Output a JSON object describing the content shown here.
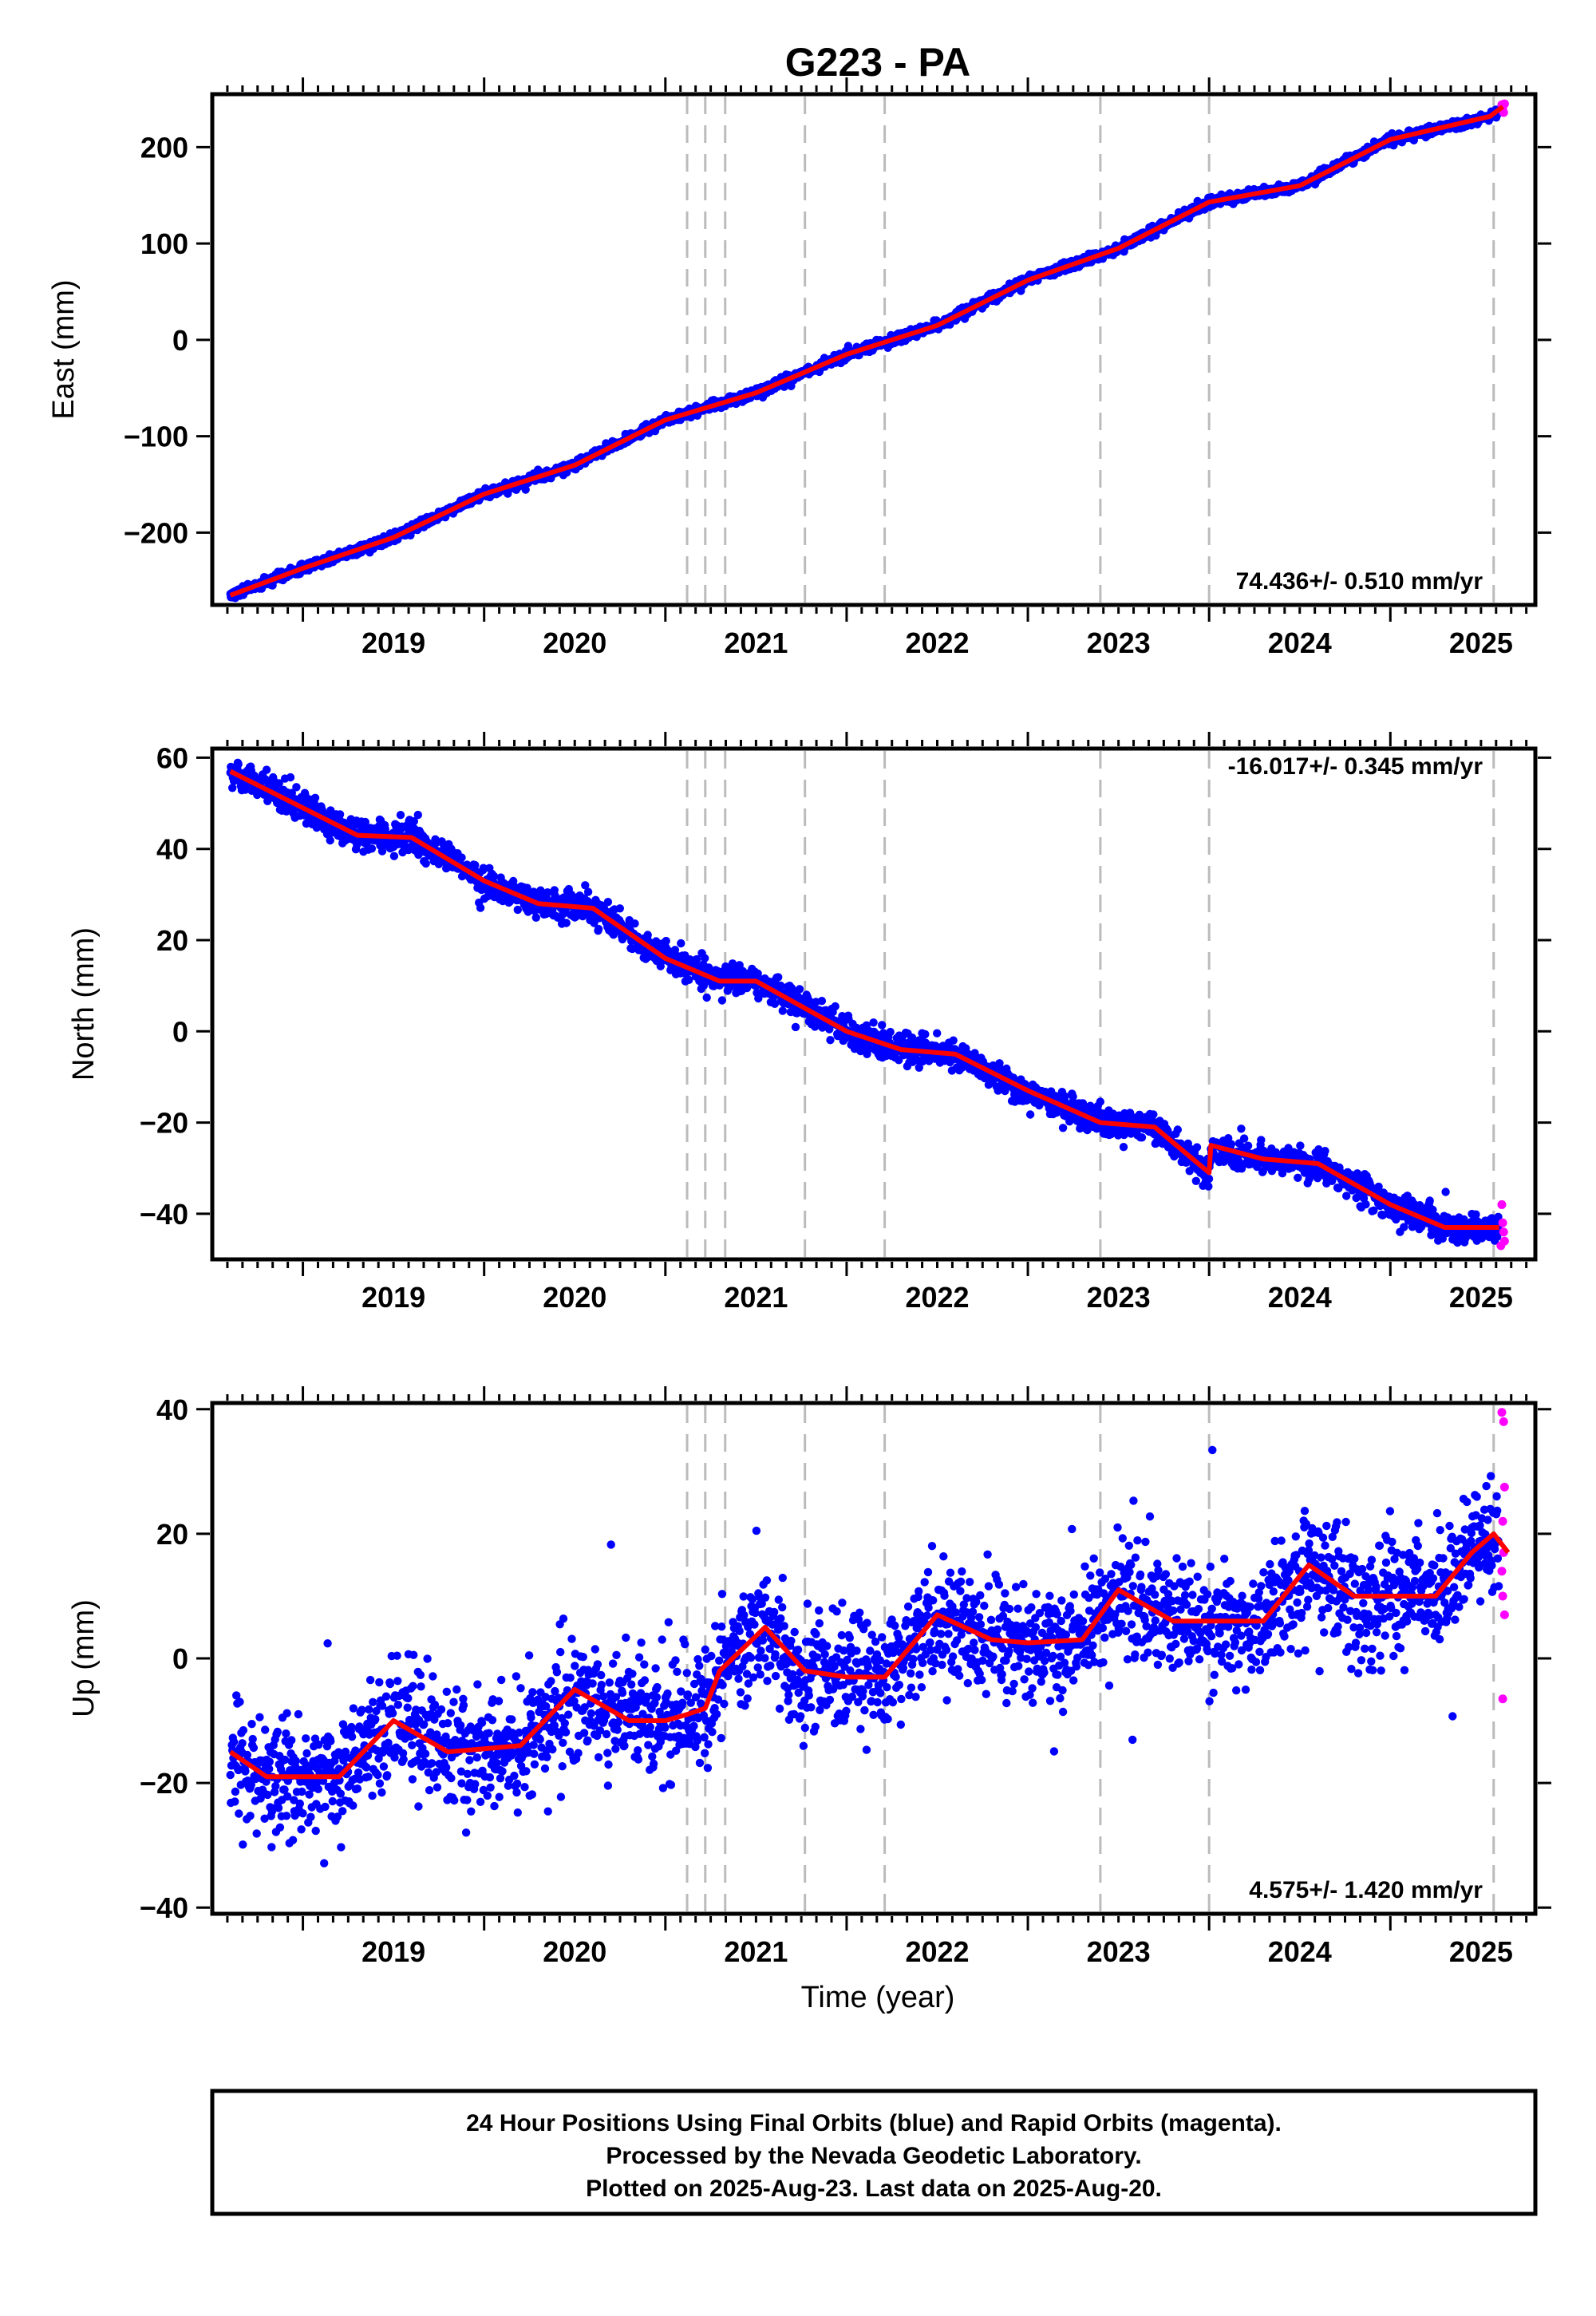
{
  "title": "G223 - PA",
  "xlabel": "Time (year)",
  "x_ticks": [
    2019,
    2020,
    2021,
    2022,
    2023,
    2024,
    2025
  ],
  "colors": {
    "final": "#0000ff",
    "rapid": "#ff00ff",
    "fit": "#ff0000",
    "breaks": "#bbbbbb"
  },
  "footer": {
    "line1": "24 Hour Positions Using Final Orbits (blue) and Rapid Orbits (magenta).",
    "line2": "Processed by the Nevada Geodetic Laboratory.",
    "line3": "Plotted on 2025-Aug-23. Last data on 2025-Aug-20."
  },
  "chart_data": [
    {
      "type": "scatter",
      "component": "east",
      "ylabel": "East (mm)",
      "rate": "74.436+/- 0.510 mm/yr",
      "xlim": [
        2018.5,
        2025.8
      ],
      "ylim": [
        -275,
        255
      ],
      "yticks": [
        -200,
        -100,
        0,
        100,
        200
      ],
      "break_years": [
        2021.12,
        2021.22,
        2021.33,
        2021.77,
        2022.21,
        2023.4,
        2024.0,
        2025.57
      ],
      "fit_knots": [
        [
          2018.6,
          -265
        ],
        [
          2019.0,
          -237
        ],
        [
          2019.5,
          -205
        ],
        [
          2020.0,
          -160
        ],
        [
          2020.5,
          -130
        ],
        [
          2021.0,
          -83
        ],
        [
          2021.5,
          -55
        ],
        [
          2022.0,
          -15
        ],
        [
          2022.5,
          15
        ],
        [
          2023.0,
          62
        ],
        [
          2023.5,
          95
        ],
        [
          2024.0,
          143
        ],
        [
          2024.5,
          160
        ],
        [
          2025.0,
          208
        ],
        [
          2025.55,
          232
        ],
        [
          2025.62,
          242
        ]
      ],
      "noise_sd": 2.5,
      "outlier_rate": 0.0,
      "outlier_sd": 0,
      "rapid_points": [
        [
          2025.615,
          244
        ],
        [
          2025.62,
          240
        ],
        [
          2025.625,
          236
        ],
        [
          2025.63,
          245
        ]
      ]
    },
    {
      "type": "scatter",
      "component": "north",
      "ylabel": "North (mm)",
      "rate": "-16.017+/- 0.345 mm/yr",
      "xlim": [
        2018.5,
        2025.8
      ],
      "ylim": [
        -50,
        62
      ],
      "yticks": [
        -40,
        -20,
        0,
        20,
        40,
        60
      ],
      "break_years": [
        2021.12,
        2021.22,
        2021.33,
        2021.77,
        2022.21,
        2023.4,
        2024.0,
        2025.57
      ],
      "fit_knots": [
        [
          2018.6,
          57
        ],
        [
          2019.0,
          49
        ],
        [
          2019.3,
          43
        ],
        [
          2019.6,
          42.5
        ],
        [
          2020.0,
          33
        ],
        [
          2020.3,
          28
        ],
        [
          2020.6,
          27
        ],
        [
          2021.0,
          16
        ],
        [
          2021.3,
          11
        ],
        [
          2021.5,
          11
        ],
        [
          2022.0,
          0
        ],
        [
          2022.3,
          -4
        ],
        [
          2022.6,
          -5
        ],
        [
          2023.0,
          -13
        ],
        [
          2023.4,
          -20
        ],
        [
          2023.7,
          -21
        ],
        [
          2024.0,
          -31
        ],
        [
          2024.01,
          -25
        ],
        [
          2024.3,
          -28
        ],
        [
          2024.6,
          -29
        ],
        [
          2025.0,
          -38
        ],
        [
          2025.3,
          -43
        ],
        [
          2025.6,
          -43
        ]
      ],
      "noise_sd": 1.6,
      "outlier_rate": 0.01,
      "outlier_sd": 3,
      "rapid_points": [
        [
          2025.615,
          -38
        ],
        [
          2025.62,
          -42
        ],
        [
          2025.625,
          -44
        ],
        [
          2025.63,
          -46
        ],
        [
          2025.61,
          -47
        ]
      ]
    },
    {
      "type": "scatter",
      "component": "up",
      "ylabel": "Up (mm)",
      "rate": "4.575+/- 1.420 mm/yr",
      "xlim": [
        2018.5,
        2025.8
      ],
      "ylim": [
        -41,
        41
      ],
      "yticks": [
        -40,
        -20,
        0,
        20,
        40
      ],
      "break_years": [
        2021.12,
        2021.22,
        2021.33,
        2021.77,
        2022.21,
        2023.4,
        2024.0,
        2025.57
      ],
      "fit_knots": [
        [
          2018.6,
          -15
        ],
        [
          2018.8,
          -19
        ],
        [
          2019.0,
          -19
        ],
        [
          2019.2,
          -19
        ],
        [
          2019.5,
          -10
        ],
        [
          2019.8,
          -15
        ],
        [
          2020.0,
          -14.5
        ],
        [
          2020.2,
          -14
        ],
        [
          2020.5,
          -5
        ],
        [
          2020.8,
          -10
        ],
        [
          2021.0,
          -10
        ],
        [
          2021.12,
          -9
        ],
        [
          2021.22,
          -8
        ],
        [
          2021.3,
          -2
        ],
        [
          2021.55,
          5
        ],
        [
          2021.77,
          -2
        ],
        [
          2022.0,
          -3
        ],
        [
          2022.21,
          -3
        ],
        [
          2022.5,
          7
        ],
        [
          2022.8,
          3
        ],
        [
          2023.0,
          2.5
        ],
        [
          2023.3,
          3
        ],
        [
          2023.5,
          11
        ],
        [
          2023.8,
          6
        ],
        [
          2024.0,
          6
        ],
        [
          2024.3,
          6
        ],
        [
          2024.55,
          15
        ],
        [
          2024.8,
          10
        ],
        [
          2025.0,
          10
        ],
        [
          2025.25,
          10
        ],
        [
          2025.45,
          17
        ],
        [
          2025.57,
          20
        ],
        [
          2025.65,
          17
        ]
      ],
      "noise_sd": 4.5,
      "outlier_rate": 0.02,
      "outlier_sd": 10,
      "rapid_points": [
        [
          2025.615,
          39.5
        ],
        [
          2025.625,
          38
        ],
        [
          2025.63,
          27.5
        ],
        [
          2025.62,
          22
        ],
        [
          2025.625,
          17
        ],
        [
          2025.615,
          14
        ],
        [
          2025.62,
          10
        ],
        [
          2025.63,
          7
        ],
        [
          2025.62,
          -6.5
        ]
      ]
    }
  ]
}
